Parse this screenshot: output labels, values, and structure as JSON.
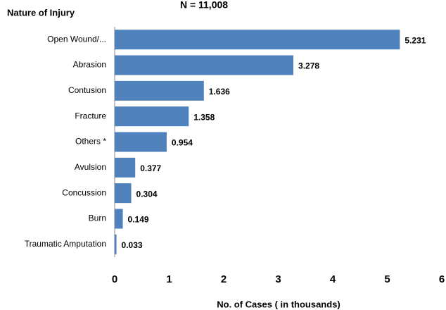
{
  "chart_data": {
    "type": "bar",
    "orientation": "horizontal",
    "title": "N = 11,008",
    "y_axis_label": "Nature of Injury",
    "x_axis_label": "No. of Cases ( in thousands)",
    "categories": [
      "Open Wound/...",
      "Abrasion",
      "Contusion",
      "Fracture",
      "Others *",
      "Avulsion",
      "Concussion",
      "Burn",
      "Traumatic Amputation"
    ],
    "values": [
      5.231,
      3.278,
      1.636,
      1.358,
      0.954,
      0.377,
      0.304,
      0.149,
      0.033
    ],
    "color": "#4f81bd",
    "xlim": [
      0,
      6
    ],
    "xticks": [
      0,
      1,
      2,
      3,
      4,
      5,
      6
    ],
    "grid": false
  }
}
